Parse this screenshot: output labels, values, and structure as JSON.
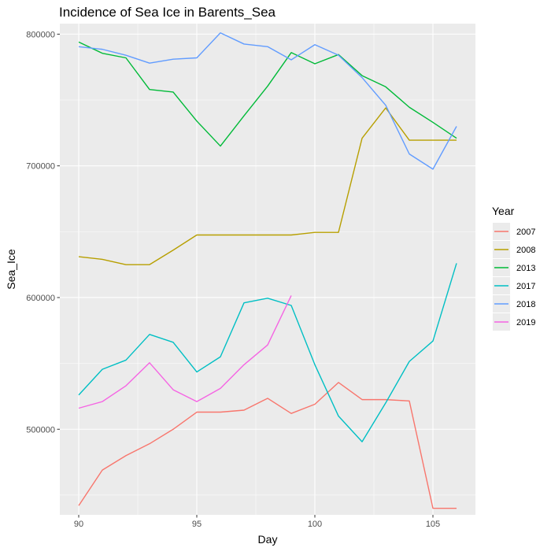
{
  "chart_data": {
    "type": "line",
    "title": "Incidence of Sea Ice in Barents_Sea",
    "xlabel": "Day",
    "ylabel": "Sea_Ice",
    "xlim": [
      89.2,
      106.8
    ],
    "ylim": [
      435000,
      808000
    ],
    "x_ticks": [
      90,
      95,
      100,
      105
    ],
    "x_tick_labels": [
      "90",
      "95",
      "100",
      "105"
    ],
    "x_minor_ticks": [
      92.5,
      97.5,
      102.5
    ],
    "y_ticks": [
      500000,
      600000,
      700000,
      800000
    ],
    "y_tick_labels": [
      "500000",
      "600000",
      "700000",
      "800000"
    ],
    "y_minor_ticks": [
      450000,
      550000,
      650000,
      750000
    ],
    "grid": true,
    "legend": {
      "title": "Year",
      "position": "right"
    },
    "series": [
      {
        "name": "2007",
        "color": "#F8766D",
        "x": [
          90,
          91,
          92,
          93,
          94,
          95,
          96,
          97,
          98,
          99,
          100,
          101,
          102,
          103,
          104,
          105,
          106
        ],
        "y": [
          442000,
          469000,
          480000,
          489000,
          500000,
          513000,
          513000,
          514500,
          523500,
          512000,
          519000,
          535500,
          522500,
          522500,
          521500,
          440000,
          440000
        ]
      },
      {
        "name": "2008",
        "color": "#B79F00",
        "x": [
          90,
          91,
          92,
          93,
          94,
          95,
          96,
          97,
          98,
          99,
          100,
          101,
          102,
          103,
          104,
          105,
          106
        ],
        "y": [
          631000,
          629000,
          625000,
          625000,
          636000,
          647500,
          647500,
          647500,
          647500,
          647500,
          649500,
          649500,
          721000,
          744000,
          719500,
          719500,
          719500
        ]
      },
      {
        "name": "2013",
        "color": "#00BA38",
        "x": [
          90,
          91,
          92,
          93,
          94,
          95,
          96,
          97,
          98,
          99,
          100,
          101,
          102,
          103,
          104,
          105,
          106
        ],
        "y": [
          794000,
          785500,
          782000,
          758000,
          756000,
          734000,
          715000,
          738000,
          760500,
          786000,
          777500,
          784500,
          768500,
          760000,
          744500,
          733000,
          721000
        ]
      },
      {
        "name": "2017",
        "color": "#00BFC4",
        "x": [
          90,
          91,
          92,
          93,
          94,
          95,
          96,
          97,
          98,
          99,
          100,
          101,
          102,
          103,
          104,
          105,
          106
        ],
        "y": [
          526000,
          545500,
          552500,
          572000,
          566000,
          543500,
          555000,
          596000,
          599500,
          594000,
          549000,
          510000,
          490500,
          520000,
          551500,
          567000,
          626000
        ]
      },
      {
        "name": "2018",
        "color": "#619CFF",
        "x": [
          90,
          91,
          92,
          93,
          94,
          95,
          96,
          97,
          98,
          99,
          100,
          101,
          102,
          103,
          104,
          105,
          106
        ],
        "y": [
          790500,
          788500,
          784000,
          778000,
          781000,
          782000,
          801000,
          792500,
          790500,
          780500,
          792000,
          784000,
          767000,
          746000,
          709000,
          697500,
          730000
        ]
      },
      {
        "name": "2019",
        "color": "#F564E3",
        "x": [
          90,
          91,
          92,
          93,
          94,
          95,
          96,
          97,
          98,
          99
        ],
        "y": [
          516000,
          521000,
          533000,
          550500,
          530000,
          521000,
          531000,
          549000,
          564000,
          601500
        ]
      }
    ]
  }
}
